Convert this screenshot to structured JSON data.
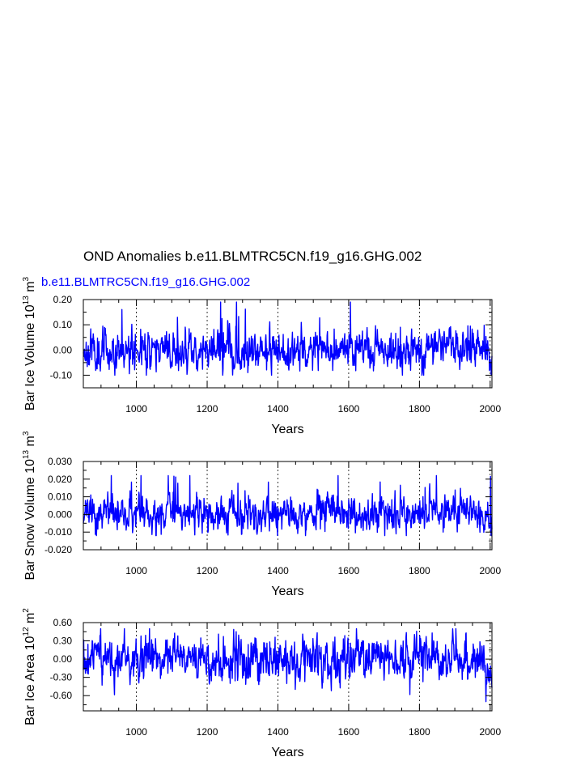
{
  "title": "OND Anomalies b.e11.BLMTRC5CN.f19_g16.GHG.002",
  "colors": {
    "line": "#0000ff",
    "subtitle": "#0000ff",
    "axis": "#000000",
    "gridline": "#000000"
  },
  "chart_data": [
    {
      "type": "line",
      "subtitle": "b.e11.BLMTRC5CN.f19_g16.GHG.002",
      "xlabel": "Years",
      "ylabel": "Bar Ice Volume 10",
      "ylabel_exp": "13",
      "ylabel_unit": " m",
      "ylabel_unit_exp": "3",
      "xlim": [
        850,
        2005
      ],
      "ylim": [
        -0.15,
        0.2
      ],
      "xticks": [
        1000,
        1200,
        1400,
        1600,
        1800,
        2000
      ],
      "xtick_labels": [
        "1000",
        "1200",
        "1400",
        "1600",
        "1800",
        "2000"
      ],
      "yticks": [
        -0.1,
        0.0,
        0.1,
        0.2
      ],
      "ytick_labels": [
        "-0.10",
        "0.00",
        "0.10",
        "0.20"
      ],
      "vlines": [
        1000,
        1200,
        1400,
        1600,
        1800,
        2000
      ],
      "series": [
        {
          "x_start": 850,
          "x_end": 2005,
          "amplitude": 0.035,
          "max": 0.19,
          "min": -0.1,
          "end_trend": -0.075,
          "seed": 11
        }
      ]
    },
    {
      "type": "line",
      "subtitle": "",
      "xlabel": "Years",
      "ylabel": "Bar Snow Volume 10",
      "ylabel_exp": "13",
      "ylabel_unit": " m",
      "ylabel_unit_exp": "3",
      "xlim": [
        850,
        2005
      ],
      "ylim": [
        -0.02,
        0.03
      ],
      "xticks": [
        1000,
        1200,
        1400,
        1600,
        1800,
        2000
      ],
      "xtick_labels": [
        "1000",
        "1200",
        "1400",
        "1600",
        "1800",
        "2000"
      ],
      "yticks": [
        -0.02,
        -0.01,
        0.0,
        0.01,
        0.02,
        0.03
      ],
      "ytick_labels": [
        "-0.020",
        "-0.010",
        "0.000",
        "0.010",
        "0.020",
        "0.030"
      ],
      "vlines": [
        1000,
        1200,
        1400,
        1600,
        1800,
        2000
      ],
      "series": [
        {
          "x_start": 850,
          "x_end": 2005,
          "amplitude": 0.0045,
          "max": 0.022,
          "min": -0.012,
          "end_trend": -0.008,
          "seed": 23
        }
      ]
    },
    {
      "type": "line",
      "subtitle": "",
      "xlabel": "Years",
      "ylabel": "Bar Ice Area 10",
      "ylabel_exp": "12",
      "ylabel_unit": " m",
      "ylabel_unit_exp": "2",
      "xlim": [
        850,
        2005
      ],
      "ylim": [
        -0.85,
        0.6
      ],
      "xticks": [
        1000,
        1200,
        1400,
        1600,
        1800,
        2000
      ],
      "xtick_labels": [
        "1000",
        "1200",
        "1400",
        "1600",
        "1800",
        "2000"
      ],
      "yticks": [
        -0.6,
        -0.3,
        0.0,
        0.3,
        0.6
      ],
      "ytick_labels": [
        "-0.60",
        "-0.30",
        "0.00",
        "0.30",
        "0.60"
      ],
      "vlines": [
        1000,
        1200,
        1400,
        1600,
        1800,
        2000
      ],
      "series": [
        {
          "x_start": 850,
          "x_end": 2005,
          "amplitude": 0.16,
          "max": 0.5,
          "min": -0.75,
          "end_trend": -0.55,
          "seed": 37
        }
      ]
    }
  ]
}
